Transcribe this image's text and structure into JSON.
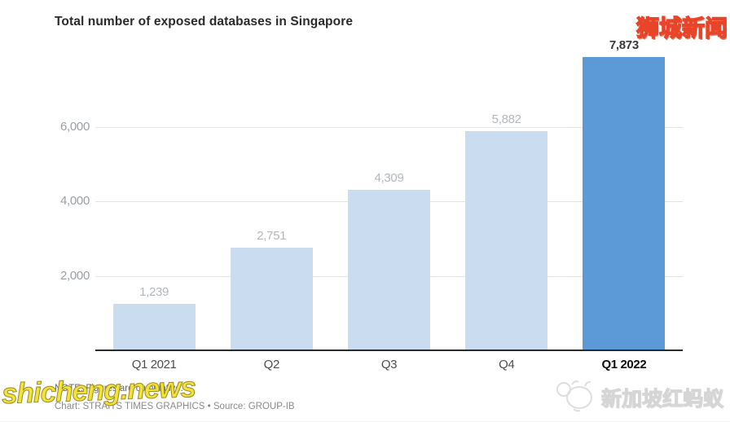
{
  "header": {
    "title": "Total number of exposed databases in Singapore"
  },
  "chart_data": {
    "type": "bar",
    "title": "Total number of exposed databases in Singapore",
    "categories": [
      "Q1 2021",
      "Q2",
      "Q3",
      "Q4",
      "Q1 2022"
    ],
    "values": [
      1239,
      2751,
      4309,
      5882,
      7873
    ],
    "value_labels": [
      "1,239",
      "2,751",
      "4,309",
      "5,882",
      "7,873"
    ],
    "xlabel": "",
    "ylabel": "",
    "ylim": [
      0,
      8000
    ],
    "yticks": [
      2000,
      4000,
      6000
    ],
    "ytick_labels": [
      "2,000",
      "4,000",
      "6,000"
    ],
    "grid": true,
    "legend": false,
    "highlight_index": 4,
    "colors": {
      "bar": "#c9dcf0",
      "bar_highlight": "#5b9ad6",
      "gridline": "#e3e3e3",
      "axis_line": "#2b2b2b",
      "value_label": "#b3b8bc",
      "value_label_highlight": "#3a3a3a"
    }
  },
  "footer": {
    "note": "NOTE: Figures are cumulative.",
    "credit": "Chart: STRAITS TIMES GRAPHICS • Source: GROUP-IB"
  },
  "watermarks": {
    "top_right": "狮城新闻",
    "bottom_left": "shicheng.news",
    "bottom_right": "新加坡红蚂蚁"
  }
}
